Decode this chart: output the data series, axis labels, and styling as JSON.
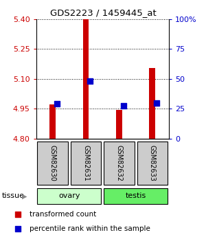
{
  "title": "GDS2223 / 1459445_at",
  "samples": [
    "GSM82630",
    "GSM82631",
    "GSM82632",
    "GSM82633"
  ],
  "red_values": [
    4.97,
    5.4,
    4.945,
    5.155
  ],
  "blue_values": [
    4.975,
    5.09,
    4.966,
    4.978
  ],
  "ymin": 4.8,
  "ymax": 5.4,
  "yticks_left": [
    4.8,
    4.95,
    5.1,
    5.25,
    5.4
  ],
  "yticks_right": [
    0,
    25,
    50,
    75,
    100
  ],
  "tissue_groups": [
    {
      "label": "ovary",
      "color": "#ccffcc",
      "indices": [
        0,
        1
      ]
    },
    {
      "label": "testis",
      "color": "#66ee66",
      "indices": [
        2,
        3
      ]
    }
  ],
  "bar_color": "#cc0000",
  "dot_color": "#0000cc",
  "bar_width": 0.18,
  "dot_size": 28,
  "left_tick_color": "#cc0000",
  "right_tick_color": "#0000cc",
  "label_box_color": "#cccccc",
  "legend_red": "transformed count",
  "legend_blue": "percentile rank within the sample",
  "bg_color": "#ffffff"
}
